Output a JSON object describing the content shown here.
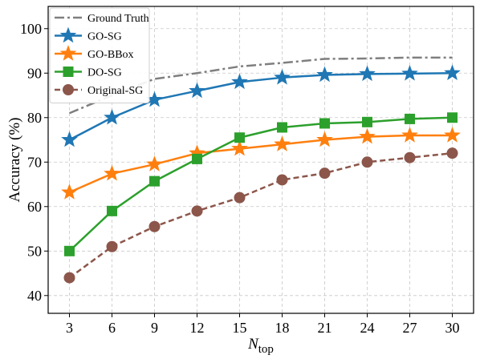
{
  "chart_data": {
    "type": "line",
    "x": [
      3,
      6,
      9,
      12,
      15,
      18,
      21,
      24,
      27,
      30
    ],
    "xticks": [
      3,
      6,
      9,
      12,
      15,
      18,
      21,
      24,
      27,
      30
    ],
    "yticks": [
      40,
      50,
      60,
      70,
      80,
      90,
      100
    ],
    "xlim": [
      1.5,
      31.5
    ],
    "ylim": [
      36,
      105
    ],
    "xlabel_main": "N",
    "xlabel_sub": "top",
    "ylabel": "Accuracy (%)",
    "grid": true,
    "legend_position": "top-left",
    "series": [
      {
        "name": "Ground Truth",
        "color": "#7f7f7f",
        "marker": "none",
        "dash": "dashdot",
        "values": [
          81,
          85,
          88.7,
          90,
          91.5,
          92.3,
          93.2,
          93.3,
          93.5,
          93.5
        ]
      },
      {
        "name": "GO-SG",
        "color": "#1f77b4",
        "marker": "star",
        "dash": "solid",
        "values": [
          75,
          80,
          84,
          86,
          88,
          89,
          89.6,
          89.8,
          89.9,
          90
        ]
      },
      {
        "name": "GO-BBox",
        "color": "#ff7f0e",
        "marker": "star",
        "dash": "solid",
        "values": [
          63.2,
          67.4,
          69.5,
          72,
          73,
          74,
          75,
          75.7,
          76,
          76
        ]
      },
      {
        "name": "DO-SG",
        "color": "#2ca02c",
        "marker": "square",
        "dash": "solid",
        "values": [
          50,
          59,
          65.7,
          70.7,
          75.5,
          77.8,
          78.7,
          79,
          79.7,
          80
        ]
      },
      {
        "name": "Original-SG",
        "color": "#8c564b",
        "marker": "circle",
        "dash": "dashed",
        "values": [
          44,
          51,
          55.5,
          59,
          62,
          66,
          67.5,
          70,
          71,
          72
        ]
      }
    ]
  }
}
